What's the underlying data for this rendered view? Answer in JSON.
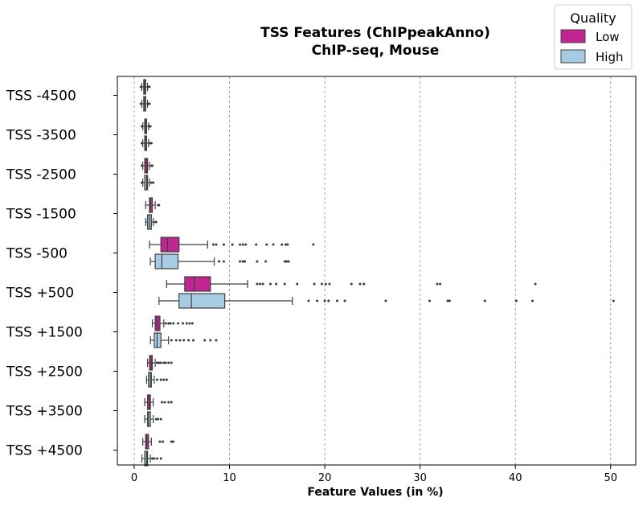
{
  "chart_data": {
    "type": "boxplot",
    "orientation": "horizontal",
    "title": "TSS Features (ChIPpeakAnno)",
    "subtitle": "ChIP-seq, Mouse",
    "xlabel": "Feature Values (in %)",
    "xlim": [
      -2,
      53
    ],
    "xticks": [
      0,
      10,
      20,
      30,
      40,
      50
    ],
    "xtick_labels": [
      "0",
      "10",
      "20",
      "30",
      "40",
      "50"
    ],
    "grid": "vertical dashed",
    "categories": [
      "TSS -4500",
      "TSS -3500",
      "TSS -2500",
      "TSS -1500",
      "TSS -500",
      "TSS +500",
      "TSS +1500",
      "TSS +2500",
      "TSS +3500",
      "TSS +4500"
    ],
    "legend": {
      "title": "Quality",
      "placement": "upper-right"
    },
    "series": [
      {
        "name": "Low",
        "color": "#c0268f",
        "boxes": [
          {
            "wlo": 0.8,
            "q1": 1.0,
            "med": 1.1,
            "q3": 1.2,
            "whi": 1.4,
            "outliers": [
              0.7,
              1.5,
              1.6
            ]
          },
          {
            "wlo": 0.9,
            "q1": 1.1,
            "med": 1.2,
            "q3": 1.3,
            "whi": 1.5,
            "outliers": [
              0.8,
              1.6,
              1.7
            ]
          },
          {
            "wlo": 0.9,
            "q1": 1.1,
            "med": 1.3,
            "q3": 1.4,
            "whi": 1.6,
            "outliers": [
              0.8,
              1.8,
              1.9
            ]
          },
          {
            "wlo": 1.2,
            "q1": 1.6,
            "med": 1.7,
            "q3": 1.9,
            "whi": 2.2,
            "outliers": [
              2.5,
              2.6
            ]
          },
          {
            "wlo": 1.6,
            "q1": 2.8,
            "med": 3.5,
            "q3": 4.7,
            "whi": 7.7,
            "outliers": [
              8.3,
              8.6,
              9.4,
              10.3,
              11.1,
              11.4,
              11.7,
              12.8,
              13.9,
              14.6,
              15.5,
              15.9,
              16.1,
              18.8
            ]
          },
          {
            "wlo": 3.4,
            "q1": 5.3,
            "med": 6.3,
            "q3": 8.0,
            "whi": 11.9,
            "outliers": [
              12.9,
              13.2,
              13.5,
              14.3,
              14.9,
              15.8,
              17.1,
              18.9,
              19.7,
              20.1,
              20.5,
              22.8,
              23.7,
              24.1,
              31.8,
              32.1,
              42.1
            ]
          },
          {
            "wlo": 1.9,
            "q1": 2.2,
            "med": 2.4,
            "q3": 2.7,
            "whi": 3.1,
            "outliers": [
              3.3,
              3.6,
              3.8,
              4.1,
              4.6,
              5.1,
              5.5,
              5.8,
              6.1
            ]
          },
          {
            "wlo": 1.4,
            "q1": 1.6,
            "med": 1.8,
            "q3": 1.9,
            "whi": 2.2,
            "outliers": [
              2.4,
              2.6,
              2.8,
              3.1,
              3.3,
              3.6,
              3.9
            ]
          },
          {
            "wlo": 1.1,
            "q1": 1.4,
            "med": 1.6,
            "q3": 1.7,
            "whi": 2.0,
            "outliers": [
              2.9,
              3.2,
              3.6,
              3.9
            ]
          },
          {
            "wlo": 0.9,
            "q1": 1.2,
            "med": 1.3,
            "q3": 1.5,
            "whi": 1.8,
            "outliers": [
              2.7,
              3.0,
              3.9,
              4.1
            ]
          }
        ]
      },
      {
        "name": "High",
        "color": "#a6cbe3",
        "boxes": [
          {
            "wlo": 0.8,
            "q1": 1.0,
            "med": 1.1,
            "q3": 1.2,
            "whi": 1.4,
            "outliers": [
              0.7,
              1.5,
              1.6
            ]
          },
          {
            "wlo": 0.9,
            "q1": 1.1,
            "med": 1.2,
            "q3": 1.3,
            "whi": 1.5,
            "outliers": [
              0.8,
              1.6,
              1.8
            ]
          },
          {
            "wlo": 0.9,
            "q1": 1.1,
            "med": 1.3,
            "q3": 1.4,
            "whi": 1.6,
            "outliers": [
              0.8,
              1.8,
              2.0
            ]
          },
          {
            "wlo": 1.2,
            "q1": 1.4,
            "med": 1.6,
            "q3": 1.8,
            "whi": 2.0,
            "outliers": [
              2.2,
              2.3
            ]
          },
          {
            "wlo": 1.7,
            "q1": 2.2,
            "med": 2.9,
            "q3": 4.6,
            "whi": 8.4,
            "outliers": [
              8.9,
              9.4,
              11.1,
              11.4,
              11.6,
              12.9,
              13.8,
              15.8,
              16.0,
              16.2
            ]
          },
          {
            "wlo": 2.6,
            "q1": 4.7,
            "med": 6.0,
            "q3": 9.5,
            "whi": 16.6,
            "outliers": [
              18.3,
              19.2,
              20.0,
              20.4,
              21.3,
              22.1,
              26.4,
              31.0,
              32.9,
              33.1,
              36.8,
              40.1,
              41.8,
              50.3
            ]
          },
          {
            "wlo": 1.7,
            "q1": 2.1,
            "med": 2.4,
            "q3": 2.8,
            "whi": 3.6,
            "outliers": [
              3.9,
              4.4,
              4.8,
              5.2,
              5.7,
              6.2,
              7.4,
              8.0,
              8.6
            ]
          },
          {
            "wlo": 1.3,
            "q1": 1.5,
            "med": 1.7,
            "q3": 1.8,
            "whi": 2.1,
            "outliers": [
              2.4,
              2.8,
              3.1,
              3.4
            ]
          },
          {
            "wlo": 1.1,
            "q1": 1.4,
            "med": 1.5,
            "q3": 1.7,
            "whi": 2.0,
            "outliers": [
              2.3,
              2.5,
              2.8
            ]
          },
          {
            "wlo": 0.8,
            "q1": 1.1,
            "med": 1.3,
            "q3": 1.4,
            "whi": 1.7,
            "outliers": [
              1.9,
              2.1,
              2.4,
              2.8
            ]
          }
        ]
      }
    ]
  }
}
